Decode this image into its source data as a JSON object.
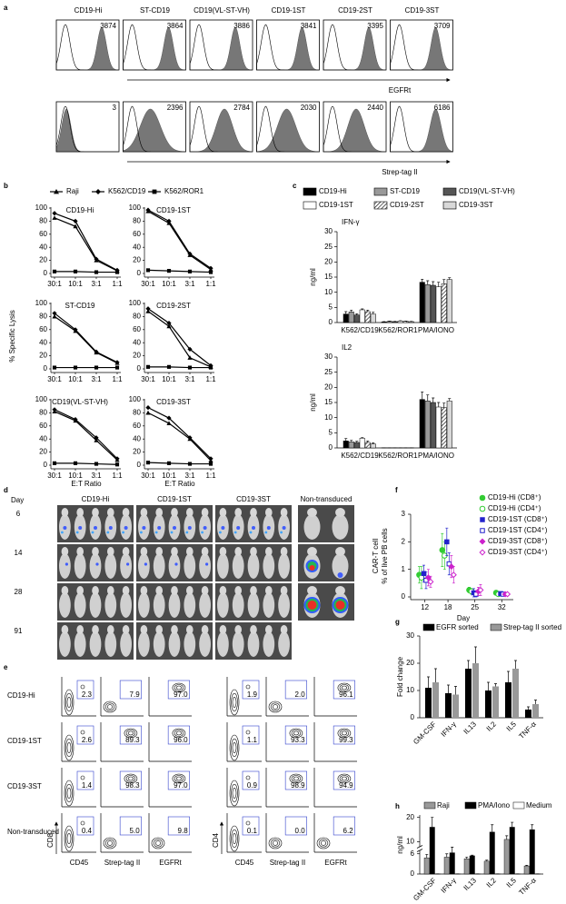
{
  "flow_histograms": {
    "label": "a",
    "samples": [
      "CD19-Hi",
      "ST-CD19",
      "CD19(VL-ST-VH)",
      "CD19-1ST",
      "CD19-2ST",
      "CD19-3ST"
    ],
    "rows": [
      {
        "axis_label": "EGFRt",
        "values": [
          "3874",
          "3864",
          "3886",
          "3841",
          "3395",
          "3709"
        ]
      },
      {
        "axis_label": "Strep-tag II",
        "values": [
          "3",
          "2396",
          "2784",
          "2030",
          "2440",
          "6186"
        ]
      }
    ]
  },
  "chart_data": [
    {
      "label": "b",
      "type": "line",
      "ylabel": "% Specific Lysis",
      "xlabel": "E:T Ratio",
      "categories": [
        "30:1",
        "10:1",
        "3:1",
        "1:1"
      ],
      "ylim": [
        0,
        100
      ],
      "yticks": [
        0,
        20,
        40,
        60,
        80,
        100
      ],
      "legend": [
        {
          "name": "Raji",
          "marker": "triangle",
          "color": "#000000"
        },
        {
          "name": "K562/CD19",
          "marker": "diamond",
          "color": "#000000"
        },
        {
          "name": "K562/ROR1",
          "marker": "square",
          "color": "#000000"
        }
      ],
      "subplots": [
        {
          "title": "CD19-Hi",
          "values": [
            [
              85,
              72,
              20,
              4
            ],
            [
              92,
              80,
              22,
              5
            ],
            [
              3,
              3,
              2,
              2
            ]
          ]
        },
        {
          "title": "CD19-1ST",
          "values": [
            [
              95,
              77,
              28,
              6
            ],
            [
              97,
              80,
              30,
              8
            ],
            [
              5,
              4,
              3,
              2
            ]
          ]
        },
        {
          "title": "ST-CD19",
          "values": [
            [
              80,
              58,
              25,
              9
            ],
            [
              85,
              60,
              26,
              10
            ],
            [
              2,
              2,
              2,
              2
            ]
          ]
        },
        {
          "title": "CD19-2ST",
          "values": [
            [
              88,
              65,
              17,
              3
            ],
            [
              92,
              70,
              30,
              5
            ],
            [
              3,
              3,
              2,
              2
            ]
          ]
        },
        {
          "title": "CD19(VL-ST-VH)",
          "values": [
            [
              82,
              68,
              38,
              8
            ],
            [
              85,
              70,
              42,
              10
            ],
            [
              3,
              3,
              2,
              1
            ]
          ]
        },
        {
          "title": "CD19-3ST",
          "values": [
            [
              80,
              64,
              40,
              7
            ],
            [
              88,
              72,
              42,
              10
            ],
            [
              4,
              3,
              2,
              2
            ]
          ]
        }
      ]
    },
    {
      "label": "c",
      "type": "bar",
      "ylabel": "ng/ml",
      "categories": [
        "K562/CD19",
        "K562/ROR1",
        "PMA/IONO"
      ],
      "series": [
        {
          "name": "CD19-Hi",
          "color": "#000000"
        },
        {
          "name": "ST-CD19",
          "color": "#999999"
        },
        {
          "name": "CD19(VL-ST-VH)",
          "color": "#555555"
        },
        {
          "name": "CD19-1ST",
          "color": "#ffffff"
        },
        {
          "name": "CD19-2ST",
          "color": "#ffffff",
          "pattern": "hatch"
        },
        {
          "name": "CD19-3ST",
          "color": "#ffffff",
          "pattern": "dots"
        }
      ],
      "subplots": [
        {
          "title": "IFN-γ",
          "ylim": [
            0,
            30
          ],
          "yticks": [
            0,
            5,
            10,
            15,
            20,
            25,
            30
          ],
          "values": [
            [
              2.8,
              0.2,
              13.3
            ],
            [
              3.5,
              0.4,
              12.5
            ],
            [
              2.5,
              0.3,
              12.3
            ],
            [
              4.2,
              0.5,
              11.8
            ],
            [
              3.6,
              0.4,
              12.8
            ],
            [
              2.8,
              0.3,
              14.2
            ]
          ],
          "errors": [
            [
              0.8,
              0.1,
              1.0
            ],
            [
              0.6,
              0.1,
              1.3
            ],
            [
              0.4,
              0.1,
              1.2
            ],
            [
              0.3,
              0.1,
              1.5
            ],
            [
              0.5,
              0.1,
              1.4
            ],
            [
              0.6,
              0.1,
              0.6
            ]
          ]
        },
        {
          "title": "IL2",
          "ylim": [
            0,
            30
          ],
          "yticks": [
            0,
            5,
            10,
            15,
            20,
            25,
            30
          ],
          "values": [
            [
              2.3,
              0.05,
              16
            ],
            [
              2.0,
              0.05,
              15.5
            ],
            [
              1.8,
              0.05,
              15.0
            ],
            [
              3.2,
              0.05,
              13.5
            ],
            [
              1.8,
              0.05,
              13.3
            ],
            [
              1.3,
              0.05,
              15.5
            ]
          ],
          "errors": [
            [
              0.8,
              0,
              2.5
            ],
            [
              0.5,
              0,
              2
            ],
            [
              0.4,
              0,
              1.5
            ],
            [
              0.2,
              0,
              1.5
            ],
            [
              0.5,
              0,
              1.5
            ],
            [
              0.4,
              0,
              0.8
            ]
          ]
        }
      ]
    },
    {
      "label": "f",
      "type": "scatter",
      "ylabel": [
        "CAR-T cell",
        "% of live PB cells"
      ],
      "xlabel": "Day",
      "x": [
        12,
        18,
        25,
        32
      ],
      "xlim": [
        9,
        35
      ],
      "xticks": [
        12,
        18,
        25,
        32
      ],
      "ylim": [
        0,
        3
      ],
      "yticks": [
        0,
        1,
        2,
        3
      ],
      "series": [
        {
          "name": "CD19-Hi (CD8⁺)",
          "color": "#33cc33",
          "marker": "circle",
          "filled": true,
          "values": [
            0.8,
            1.7,
            0.25,
            0.15
          ],
          "errors": [
            0.3,
            0.6,
            0.1,
            0.05
          ]
        },
        {
          "name": "CD19-Hi (CD4⁺)",
          "color": "#33cc33",
          "marker": "circle",
          "filled": false,
          "values": [
            0.7,
            1.5,
            0.2,
            0.1
          ],
          "errors": [
            0.4,
            0.5,
            0.1,
            0.05
          ]
        },
        {
          "name": "CD19-1ST (CD8⁺)",
          "color": "#2222cc",
          "marker": "square",
          "filled": true,
          "values": [
            0.85,
            2.0,
            0.15,
            0.12
          ],
          "errors": [
            0.3,
            0.5,
            0.15,
            0.05
          ]
        },
        {
          "name": "CD19-1ST (CD4⁺)",
          "color": "#2222cc",
          "marker": "square",
          "filled": false,
          "values": [
            0.6,
            1.2,
            0.1,
            0.1
          ],
          "errors": [
            0.3,
            0.4,
            0.1,
            0.05
          ]
        },
        {
          "name": "CD19-3ST (CD8⁺)",
          "color": "#cc22cc",
          "marker": "diamond",
          "filled": true,
          "values": [
            0.7,
            1.1,
            0.2,
            0.1
          ],
          "errors": [
            0.3,
            0.4,
            0.15,
            0.05
          ]
        },
        {
          "name": "CD19-3ST (CD4⁺)",
          "color": "#cc22cc",
          "marker": "diamond",
          "filled": false,
          "values": [
            0.55,
            0.8,
            0.25,
            0.1
          ],
          "errors": [
            0.2,
            0.3,
            0.2,
            0.05
          ]
        }
      ]
    },
    {
      "label": "g",
      "type": "bar",
      "ylabel": "Fold change",
      "categories": [
        "GM-CSF",
        "IFN-γ",
        "IL13",
        "IL2",
        "IL5",
        "TNF-α"
      ],
      "ylim": [
        0,
        30
      ],
      "yticks": [
        0,
        10,
        20,
        30
      ],
      "series": [
        {
          "name": "EGFR sorted",
          "color": "#000000",
          "values": [
            11,
            9,
            18,
            10,
            13,
            3
          ],
          "errors": [
            4,
            3,
            3,
            3,
            4,
            1
          ]
        },
        {
          "name": "Strep-tag II sorted",
          "color": "#999999",
          "values": [
            13,
            8.5,
            20,
            11.5,
            18,
            5
          ],
          "errors": [
            5,
            3,
            6,
            1,
            3,
            1.5
          ]
        }
      ]
    },
    {
      "label": "h",
      "type": "bar",
      "ylabel": "ng/ml",
      "categories": [
        "GM-CSF",
        "IFN-γ",
        "IL13",
        "IL2",
        "IL5",
        "TNF-α"
      ],
      "ylim": [
        0,
        21
      ],
      "ybreak": [
        7,
        8
      ],
      "yticks": [
        0,
        6,
        10,
        20
      ],
      "series": [
        {
          "name": "Raji",
          "color": "#999999",
          "values": [
            4.8,
            5,
            4.5,
            3.8,
            11,
            2.4
          ],
          "errors": [
            1,
            1,
            0.5,
            0.3,
            1.5,
            0.2
          ]
        },
        {
          "name": "PMA/Iono",
          "color": "#000000",
          "values": [
            16,
            6.3,
            5.4,
            14,
            16,
            15
          ],
          "errors": [
            4,
            1.6,
            0.2,
            3,
            2,
            2
          ]
        },
        {
          "name": "Medium",
          "color": "#ffffff",
          "values": [
            0.05,
            0.05,
            0.05,
            0.05,
            0.05,
            0.05
          ],
          "errors": [
            0,
            0,
            0,
            0,
            0,
            0
          ]
        }
      ]
    }
  ],
  "imaging": {
    "label": "d",
    "day_header": "Day",
    "groups": [
      "CD19-Hi",
      "CD19-1ST",
      "CD19-3ST",
      "Non-transduced"
    ],
    "days": [
      6,
      14,
      28,
      91
    ]
  },
  "flow_plots": {
    "label": "e",
    "rows": [
      "CD19-Hi",
      "CD19-1ST",
      "CD19-3ST",
      "Non-transduced"
    ],
    "groups": [
      {
        "y_label": "CD8",
        "x_labels": [
          "CD45",
          "Strep-tag II",
          "EGFRt"
        ],
        "values": [
          [
            "2.3",
            "7.9",
            "97.0"
          ],
          [
            "2.6",
            "89.3",
            "96.0"
          ],
          [
            "1.4",
            "98.3",
            "97.0"
          ],
          [
            "0.4",
            "5.0",
            "9.8"
          ]
        ]
      },
      {
        "y_label": "CD4",
        "x_labels": [
          "CD45",
          "Strep-tag II",
          "EGFRt"
        ],
        "values": [
          [
            "1.9",
            "2.0",
            "96.1"
          ],
          [
            "1.1",
            "93.3",
            "99.3"
          ],
          [
            "0.9",
            "98.9",
            "94.9"
          ],
          [
            "0.1",
            "0.0",
            "6.2"
          ]
        ]
      }
    ]
  }
}
